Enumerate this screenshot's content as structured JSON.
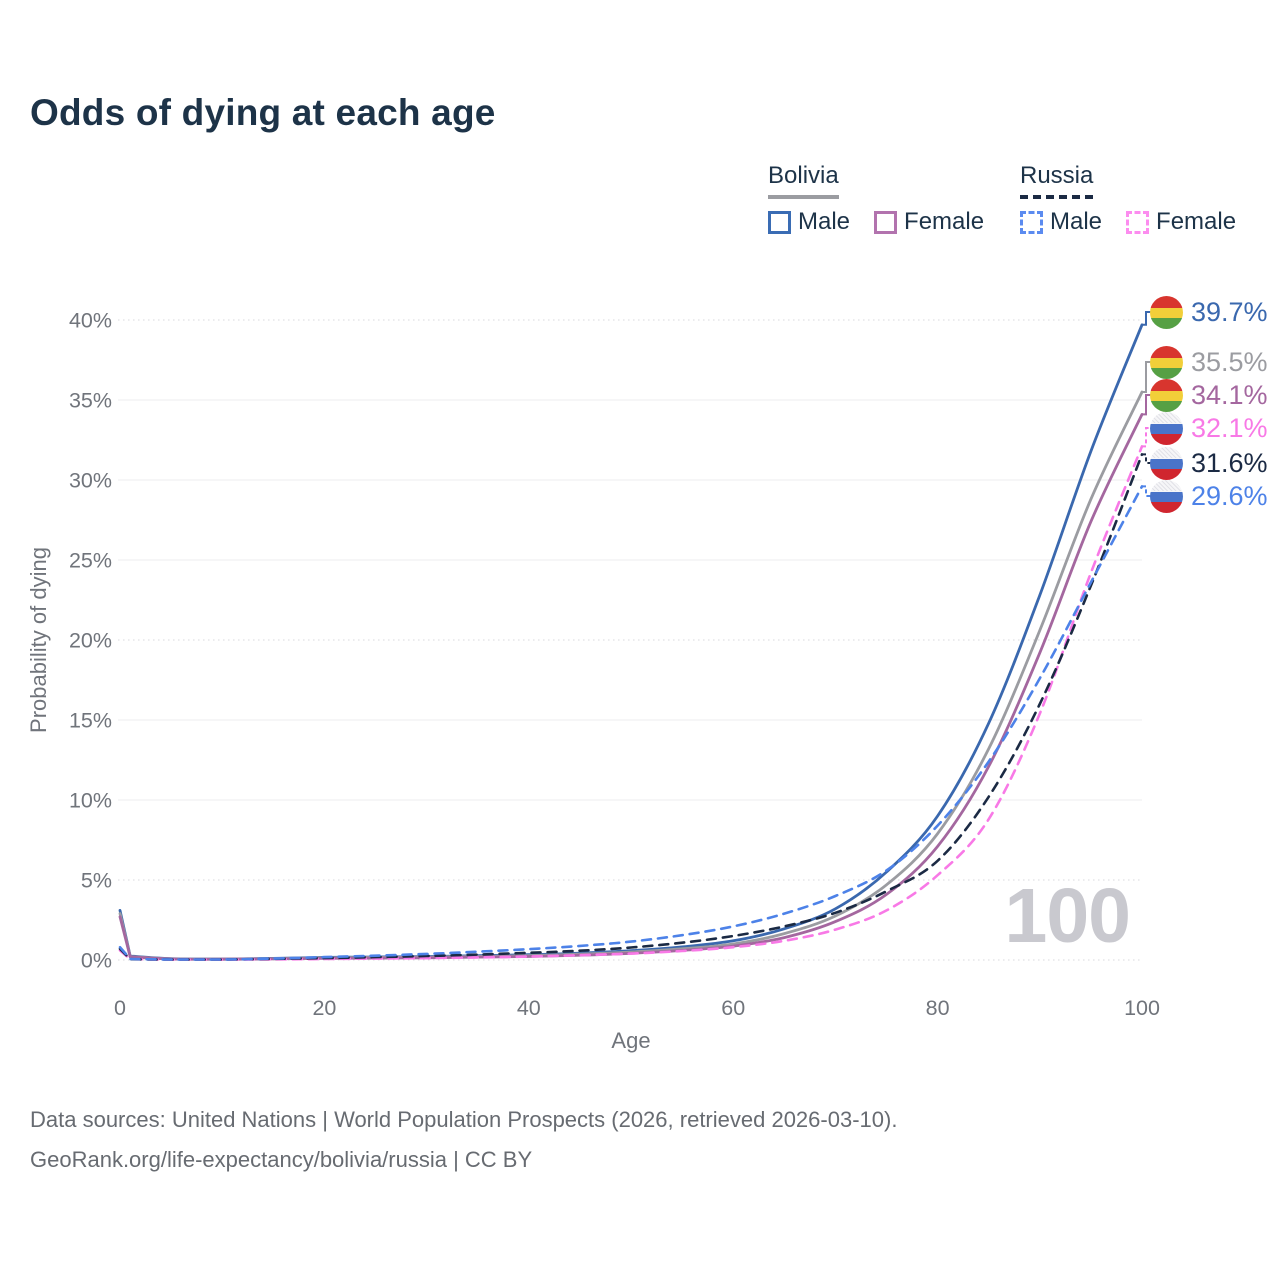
{
  "title": "Odds of dying at each age",
  "legend": {
    "groups": [
      {
        "label": "Bolivia",
        "line_style": "solid",
        "underline_color": "#9b9ca1",
        "items": [
          {
            "label": "Male",
            "color": "#3a6cb4"
          },
          {
            "label": "Female",
            "color": "#b273ae"
          }
        ]
      },
      {
        "label": "Russia",
        "line_style": "dashed",
        "underline_color": "#1b2a44",
        "items": [
          {
            "label": "Male",
            "color": "#5b8bf0"
          },
          {
            "label": "Female",
            "color": "#fc8def"
          }
        ]
      }
    ]
  },
  "watermark": "100",
  "footer": {
    "line1": "Data sources: United Nations | World Population Prospects (2026, retrieved 2026-03-10).",
    "line2": "GeoRank.org/life-expectancy/bolivia/russia | CC BY"
  },
  "chart_data": {
    "type": "line",
    "title": "Odds of dying at each age",
    "xlabel": "Age",
    "ylabel": "Probability of dying",
    "xlim": [
      0,
      100
    ],
    "ylim": [
      0,
      40
    ],
    "x_ticks": [
      0,
      20,
      40,
      60,
      80,
      100
    ],
    "y_ticks": [
      0,
      5,
      10,
      15,
      20,
      25,
      30,
      35,
      40
    ],
    "y_tick_suffix": "%",
    "grid": "horizontal",
    "dotted_gridlines": [
      0,
      5,
      20,
      40
    ],
    "x": [
      0,
      1,
      5,
      10,
      15,
      20,
      25,
      30,
      35,
      40,
      45,
      50,
      55,
      60,
      65,
      70,
      75,
      80,
      85,
      90,
      95,
      100
    ],
    "series": [
      {
        "name": "Bolivia Male",
        "country": "Bolivia",
        "sex": "Male",
        "style": "solid",
        "color": "#3a68ae",
        "flag": "bolivia",
        "end_label": "39.7%",
        "end_value": 39.7,
        "values": [
          3.1,
          0.25,
          0.08,
          0.06,
          0.1,
          0.16,
          0.19,
          0.22,
          0.27,
          0.33,
          0.43,
          0.58,
          0.82,
          1.2,
          1.95,
          3.2,
          5.5,
          9.0,
          14.8,
          22.8,
          31.8,
          39.7
        ]
      },
      {
        "name": "Bolivia",
        "country": "Bolivia",
        "sex": "Both",
        "style": "solid",
        "color": "#9b9ca1",
        "flag": "bolivia",
        "end_label": "35.5%",
        "end_value": 35.5,
        "values": [
          2.9,
          0.22,
          0.07,
          0.05,
          0.08,
          0.13,
          0.16,
          0.18,
          0.22,
          0.27,
          0.36,
          0.5,
          0.7,
          1.0,
          1.65,
          2.75,
          4.7,
          7.9,
          13.2,
          20.6,
          28.8,
          35.5
        ]
      },
      {
        "name": "Bolivia Female",
        "country": "Bolivia",
        "sex": "Female",
        "style": "solid",
        "color": "#a4679f",
        "flag": "bolivia",
        "end_label": "34.1%",
        "end_value": 34.1,
        "values": [
          2.7,
          0.2,
          0.06,
          0.05,
          0.07,
          0.1,
          0.12,
          0.14,
          0.18,
          0.22,
          0.3,
          0.42,
          0.6,
          0.87,
          1.4,
          2.4,
          4.1,
          7.1,
          12.1,
          19.2,
          27.4,
          34.1
        ]
      },
      {
        "name": "Russia Female",
        "country": "Russia",
        "sex": "Female",
        "style": "dashed",
        "color": "#f879e6",
        "flag": "russia",
        "end_label": "32.1%",
        "end_value": 32.1,
        "values": [
          0.6,
          0.05,
          0.02,
          0.02,
          0.04,
          0.06,
          0.09,
          0.12,
          0.16,
          0.22,
          0.3,
          0.4,
          0.56,
          0.8,
          1.2,
          1.9,
          3.1,
          5.3,
          8.8,
          15.4,
          24.2,
          32.1
        ]
      },
      {
        "name": "Russia",
        "country": "Russia",
        "sex": "Both",
        "style": "dashed",
        "color": "#1b2a44",
        "flag": "russia",
        "end_label": "31.6%",
        "end_value": 31.6,
        "values": [
          0.7,
          0.05,
          0.03,
          0.03,
          0.07,
          0.12,
          0.18,
          0.25,
          0.34,
          0.45,
          0.58,
          0.78,
          1.08,
          1.5,
          2.1,
          2.95,
          4.3,
          6.2,
          10.2,
          16.0,
          23.4,
          31.6
        ]
      },
      {
        "name": "Russia Male",
        "country": "Russia",
        "sex": "Male",
        "style": "dashed",
        "color": "#4d82e8",
        "flag": "russia",
        "end_label": "29.6%",
        "end_value": 29.6,
        "values": [
          0.8,
          0.06,
          0.03,
          0.03,
          0.09,
          0.18,
          0.27,
          0.38,
          0.52,
          0.68,
          0.88,
          1.15,
          1.55,
          2.1,
          2.9,
          4.0,
          5.6,
          8.4,
          12.4,
          17.6,
          23.6,
          29.6
        ]
      }
    ]
  }
}
